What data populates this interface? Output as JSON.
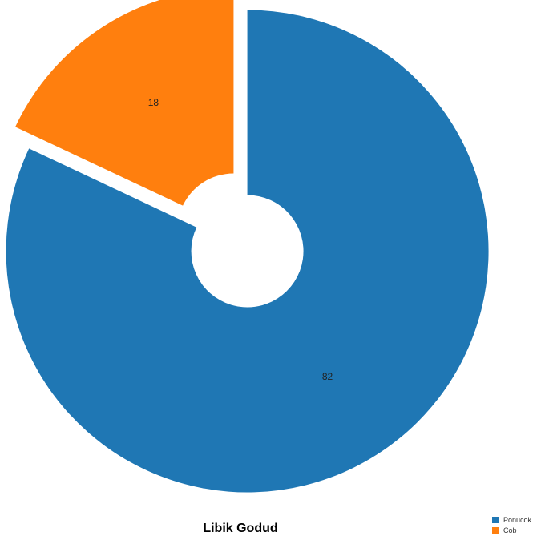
{
  "chart_data": {
    "type": "pie",
    "title": "Libik Godud",
    "categories": [
      "Ponucok",
      "Cob"
    ],
    "values": [
      82,
      18
    ],
    "data_labels": [
      "82",
      "18"
    ],
    "colors": [
      "#1f77b4",
      "#ff7f0e"
    ],
    "donut": true,
    "exploded": true,
    "legend_position": "bottom-right"
  }
}
